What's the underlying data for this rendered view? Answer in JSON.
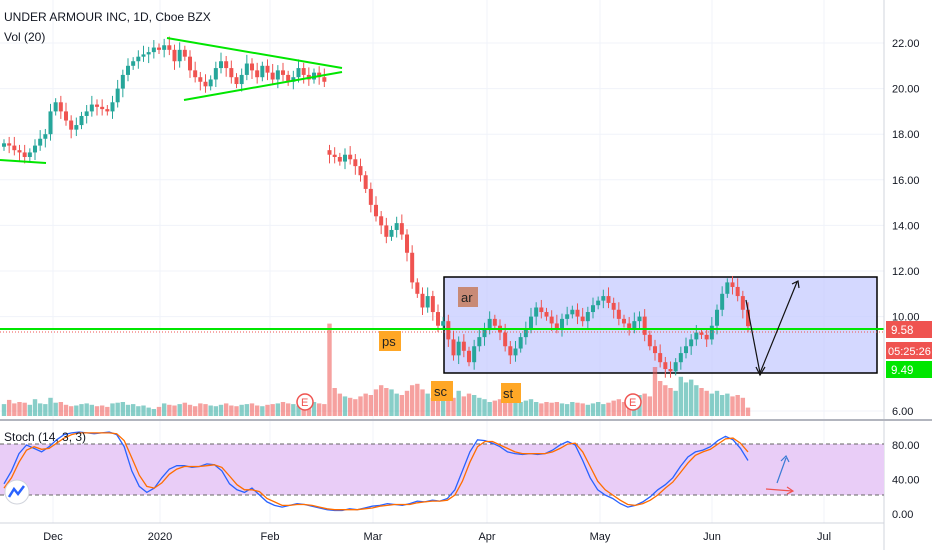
{
  "header": {
    "symbol_line": "UNDER ARMOUR INC, 1D, Cboe BZX",
    "volume_label": "Vol (20)"
  },
  "chart_data": [
    {
      "type": "candlestick",
      "title": "UNDER ARMOUR INC, 1D, Cboe BZX",
      "ylim": [
        5.5,
        24.2
      ],
      "y_ticks": [
        "22.00",
        "20.00",
        "18.00",
        "16.00",
        "14.00",
        "12.00",
        "10.00",
        "6.00"
      ],
      "x_ticks": [
        "Dec",
        "2020",
        "Feb",
        "Mar",
        "Apr",
        "May",
        "Jun",
        "Jul"
      ],
      "price_labels": [
        {
          "text": "9.58",
          "color": "#ef5350"
        },
        {
          "text": "05:25:26",
          "color": "#ef5350"
        },
        {
          "text": "9.49",
          "color": "#00c853"
        }
      ],
      "closes": [
        17.6,
        17.5,
        17.3,
        17.2,
        17.0,
        17.2,
        17.5,
        17.8,
        18.0,
        19.0,
        19.4,
        19.0,
        18.6,
        18.2,
        18.4,
        18.8,
        19.0,
        19.3,
        19.2,
        19.1,
        19.0,
        19.4,
        20.0,
        20.6,
        21.0,
        21.2,
        21.4,
        21.5,
        21.6,
        21.8,
        21.7,
        21.9,
        21.7,
        21.2,
        21.7,
        21.4,
        20.8,
        20.5,
        20.3,
        20.1,
        20.4,
        20.9,
        21.2,
        20.9,
        20.5,
        20.2,
        20.6,
        21.1,
        20.8,
        20.5,
        21.0,
        20.7,
        20.4,
        20.8,
        20.6,
        20.3,
        20.5,
        20.9,
        20.6,
        20.4,
        20.7,
        20.5,
        20.3,
        17.1,
        17.0,
        16.8,
        17.1,
        16.9,
        16.6,
        16.2,
        15.6,
        14.9,
        14.4,
        14.0,
        13.5,
        13.8,
        14.1,
        13.6,
        12.8,
        11.5,
        11.0,
        10.4,
        10.9,
        10.2,
        9.6,
        9.8,
        9.0,
        8.3,
        8.9,
        8.5,
        8.0,
        8.7,
        9.1,
        9.5,
        9.9,
        9.6,
        9.3,
        8.7,
        8.3,
        8.6,
        9.1,
        9.5,
        10.0,
        10.4,
        10.2,
        10.0,
        9.7,
        9.5,
        9.9,
        10.1,
        10.3,
        10.0,
        9.8,
        10.2,
        10.5,
        10.7,
        10.9,
        10.6,
        10.3,
        9.9,
        9.7,
        9.5,
        9.8,
        10.0,
        9.2,
        8.7,
        8.4,
        8.0,
        7.7,
        7.6,
        8.0,
        8.4,
        8.7,
        9.0,
        9.3,
        9.2,
        9.0,
        9.6,
        10.3,
        11.0,
        11.5,
        11.3,
        10.9,
        10.3,
        9.58
      ],
      "volumes": [
        0.85,
        1.15,
        0.9,
        1.0,
        0.95,
        0.8,
        1.2,
        0.9,
        0.85,
        1.3,
        0.95,
        1.0,
        0.8,
        0.7,
        0.75,
        0.85,
        0.9,
        0.8,
        0.7,
        0.75,
        0.65,
        0.9,
        0.95,
        1.0,
        0.8,
        0.85,
        0.7,
        0.75,
        0.6,
        0.5,
        0.65,
        0.9,
        0.8,
        0.75,
        0.85,
        0.95,
        0.8,
        0.7,
        0.9,
        0.85,
        0.75,
        0.7,
        0.8,
        0.9,
        0.75,
        0.7,
        0.8,
        0.85,
        0.9,
        0.75,
        0.7,
        0.8,
        0.85,
        0.9,
        1.0,
        0.9,
        0.85,
        0.75,
        0.8,
        0.95,
        1.0,
        0.9,
        0.85,
        6.6,
        2.0,
        1.6,
        1.4,
        1.3,
        1.2,
        1.4,
        1.6,
        1.5,
        1.9,
        2.2,
        2.0,
        1.9,
        1.6,
        1.5,
        1.8,
        2.2,
        2.3,
        1.9,
        1.6,
        1.3,
        1.5,
        1.6,
        1.4,
        1.3,
        1.8,
        1.4,
        1.6,
        1.5,
        1.3,
        1.2,
        1.0,
        1.1,
        1.2,
        1.0,
        1.3,
        1.2,
        1.0,
        1.1,
        1.2,
        1.0,
        0.9,
        1.0,
        0.95,
        1.0,
        0.9,
        0.85,
        1.0,
        0.95,
        0.9,
        0.8,
        0.9,
        1.0,
        0.85,
        0.95,
        1.1,
        1.2,
        1.0,
        1.3,
        1.4,
        1.5,
        1.6,
        1.4,
        3.5,
        2.5,
        2.2,
        2.0,
        1.8,
        2.8,
        2.4,
        2.6,
        2.2,
        2.0,
        1.8,
        1.6,
        1.8,
        1.5,
        1.6,
        1.4,
        1.5,
        1.3,
        0.6
      ]
    },
    {
      "type": "line",
      "title": "Stoch (14, 3, 3)",
      "ylim": [
        -5,
        100
      ],
      "y_ticks": [
        "80.00",
        "40.00",
        "0.00"
      ],
      "levels": [
        80,
        20
      ],
      "series": [
        {
          "color": "#2962ff",
          "values": [
            35,
            50,
            70,
            80,
            76,
            72,
            78,
            86,
            92,
            94,
            95,
            94,
            93,
            94,
            95,
            92,
            78,
            50,
            32,
            25,
            30,
            42,
            52,
            56,
            56,
            54,
            55,
            58,
            57,
            50,
            35,
            28,
            25,
            30,
            22,
            14,
            10,
            8,
            10,
            12,
            11,
            9,
            7,
            5,
            4,
            4,
            6,
            5,
            7,
            9,
            10,
            12,
            11,
            10,
            12,
            15,
            14,
            16,
            15,
            18,
            28,
            50,
            72,
            86,
            85,
            82,
            78,
            72,
            70,
            69,
            70,
            69,
            70,
            74,
            80,
            84,
            80,
            62,
            42,
            28,
            22,
            18,
            12,
            8,
            10,
            14,
            20,
            28,
            34,
            42,
            55,
            66,
            72,
            74,
            78,
            85,
            90,
            86,
            76,
            62
          ]
        },
        {
          "color": "#ff6d00",
          "values": [
            30,
            42,
            60,
            74,
            78,
            75,
            76,
            82,
            88,
            92,
            94,
            94,
            94,
            94,
            94,
            93,
            85,
            65,
            45,
            32,
            30,
            36,
            46,
            52,
            55,
            55,
            55,
            56,
            57,
            54,
            44,
            34,
            28,
            28,
            26,
            18,
            14,
            10,
            10,
            11,
            11,
            10,
            8,
            6,
            5,
            5,
            5,
            5,
            6,
            7,
            9,
            10,
            11,
            11,
            11,
            13,
            14,
            15,
            15,
            16,
            22,
            38,
            60,
            78,
            84,
            84,
            80,
            76,
            72,
            70,
            70,
            70,
            70,
            72,
            76,
            81,
            82,
            72,
            55,
            38,
            28,
            22,
            16,
            11,
            10,
            12,
            16,
            22,
            30,
            37,
            48,
            59,
            68,
            72,
            75,
            81,
            87,
            88,
            82,
            72
          ]
        }
      ]
    }
  ],
  "annotations": {
    "range_box_labels": [
      "ar",
      "ps",
      "sc",
      "st"
    ],
    "earnings_marker": "E"
  },
  "colors": {
    "up": "#26a69a",
    "down": "#ef5350",
    "trendline": "#00e600",
    "range_box": "#c5cbff",
    "stoch_band": "#e9cdf7",
    "label_box": "#ffa726",
    "ar_box": "#c88a76"
  },
  "controls": {
    "logo_button": "tradingview-logo-icon"
  }
}
